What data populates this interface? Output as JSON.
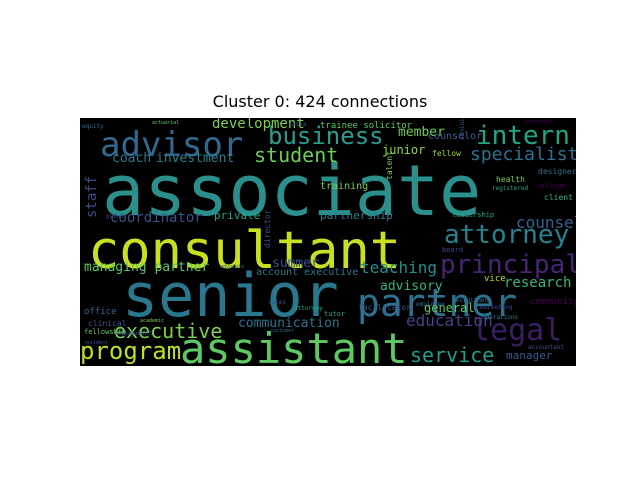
{
  "chart_data": {
    "type": "wordcloud",
    "title": "Cluster 0: 424 connections",
    "words": [
      {
        "text": "associate",
        "color": "#2b8f8c"
      },
      {
        "text": "consultant",
        "color": "#c8e020"
      },
      {
        "text": "senior",
        "color": "#2a788e"
      },
      {
        "text": "partner",
        "color": "#2c728e"
      },
      {
        "text": "assistant",
        "color": "#5ec962"
      },
      {
        "text": "advisor",
        "color": "#31688e"
      },
      {
        "text": "business",
        "color": "#2a9d8f"
      },
      {
        "text": "intern",
        "color": "#21a585"
      },
      {
        "text": "attorney",
        "color": "#25838e"
      },
      {
        "text": "principal",
        "color": "#482475"
      },
      {
        "text": "legal",
        "color": "#3b1e64"
      },
      {
        "text": "executive",
        "color": "#7ad151"
      },
      {
        "text": "program",
        "color": "#bddf26"
      },
      {
        "text": "student",
        "color": "#6cce59"
      },
      {
        "text": "specialist",
        "color": "#2c728e"
      },
      {
        "text": "counsel",
        "color": "#33638d"
      },
      {
        "text": "teaching",
        "color": "#21918c"
      },
      {
        "text": "service",
        "color": "#1f9e89"
      },
      {
        "text": "development",
        "color": "#7ad151"
      },
      {
        "text": "education",
        "color": "#414487"
      },
      {
        "text": "research",
        "color": "#35b779"
      },
      {
        "text": "communication",
        "color": "#2c728e"
      },
      {
        "text": "coordinator",
        "color": "#3b528b"
      },
      {
        "text": "managing partner",
        "color": "#5ec962"
      },
      {
        "text": "coach",
        "color": "#2a788e"
      },
      {
        "text": "investment",
        "color": "#26828e"
      },
      {
        "text": "member",
        "color": "#6ece58"
      },
      {
        "text": "staff",
        "color": "#3e4a89"
      },
      {
        "text": "private",
        "color": "#22a884"
      },
      {
        "text": "partnership",
        "color": "#26828e"
      },
      {
        "text": "summer",
        "color": "#3b528b"
      },
      {
        "text": "advisory",
        "color": "#2fb47c"
      },
      {
        "text": "general",
        "color": "#5ec962"
      },
      {
        "text": "junior",
        "color": "#95d840"
      },
      {
        "text": "counselor",
        "color": "#35608d"
      },
      {
        "text": "trainee solicitor",
        "color": "#5ec962"
      },
      {
        "text": "training",
        "color": "#7ad151"
      },
      {
        "text": "manager",
        "color": "#38588c"
      },
      {
        "text": "community",
        "color": "#440154"
      },
      {
        "text": "account executive",
        "color": "#2a788e"
      },
      {
        "text": "office",
        "color": "#31688e"
      },
      {
        "text": "clinical",
        "color": "#3b528b"
      },
      {
        "text": "board",
        "color": "#3f4788"
      },
      {
        "text": "leadership",
        "color": "#22a884"
      },
      {
        "text": "vice",
        "color": "#bddf26"
      },
      {
        "text": "designer",
        "color": "#2d708e"
      },
      {
        "text": "college",
        "color": "#440154"
      },
      {
        "text": "health",
        "color": "#7ad151"
      },
      {
        "text": "director",
        "color": "#3b528b"
      },
      {
        "text": "fellow",
        "color": "#95d840"
      },
      {
        "text": "facilitator",
        "color": "#3b528b"
      },
      {
        "text": "client",
        "color": "#35b779"
      },
      {
        "text": "fellowship",
        "color": "#5ec962"
      },
      {
        "text": "equity",
        "color": "#2d708e"
      },
      {
        "text": "tutor",
        "color": "#22a884"
      },
      {
        "text": "marketing",
        "color": "#3e4a89"
      },
      {
        "text": "recruitment",
        "color": "#2c728e"
      },
      {
        "text": "accountant",
        "color": "#3b528b"
      },
      {
        "text": "operations",
        "color": "#2a788e"
      },
      {
        "text": "administrative",
        "color": "#3b528b"
      },
      {
        "text": "talent",
        "color": "#7ad151"
      },
      {
        "text": "registered",
        "color": "#22a884"
      },
      {
        "text": "employee",
        "color": "#2d708e"
      },
      {
        "text": "engagement",
        "color": "#3e4a89"
      },
      {
        "text": "asia",
        "color": "#3b528b"
      },
      {
        "text": "global",
        "color": "#3b528b"
      },
      {
        "text": "sales",
        "color": "#3b528b"
      },
      {
        "text": "advocate",
        "color": "#31688e"
      },
      {
        "text": "academic",
        "color": "#7ad151"
      },
      {
        "text": "customer",
        "color": "#31688e"
      },
      {
        "text": "corporate",
        "color": "#440154"
      },
      {
        "text": "actuarial",
        "color": "#5ec962"
      },
      {
        "text": "resident",
        "color": "#3b528b"
      },
      {
        "text": "attorney",
        "color": "#22a884"
      }
    ]
  }
}
